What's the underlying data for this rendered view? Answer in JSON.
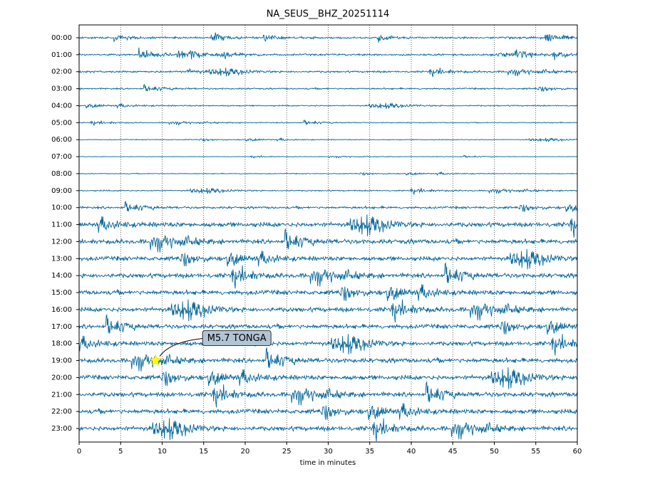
{
  "chart_data": {
    "type": "helicorder",
    "title": "NA_SEUS__BHZ_20251114",
    "xlabel": "time in minutes",
    "categories": [
      "00:00",
      "01:00",
      "02:00",
      "03:00",
      "04:00",
      "05:00",
      "06:00",
      "07:00",
      "08:00",
      "09:00",
      "10:00",
      "11:00",
      "12:00",
      "13:00",
      "14:00",
      "15:00",
      "16:00",
      "17:00",
      "18:00",
      "19:00",
      "20:00",
      "21:00",
      "22:00",
      "23:00"
    ],
    "values": [
      0.12,
      0.12,
      0.12,
      0.1,
      0.08,
      0.06,
      0.05,
      0.03,
      0.05,
      0.08,
      0.15,
      0.3,
      0.3,
      0.28,
      0.3,
      0.3,
      0.3,
      0.28,
      0.28,
      0.3,
      0.3,
      0.3,
      0.3,
      0.3
    ],
    "color": "#05669a",
    "xlim": [
      0,
      60
    ],
    "xticks": [
      0,
      5,
      10,
      15,
      20,
      25,
      30,
      35,
      40,
      45,
      50,
      55,
      60
    ],
    "grid": true,
    "annotation": {
      "text": "M5.7 TONGA",
      "x": 9.2,
      "category": "19:00",
      "color": "#ffff00"
    }
  }
}
